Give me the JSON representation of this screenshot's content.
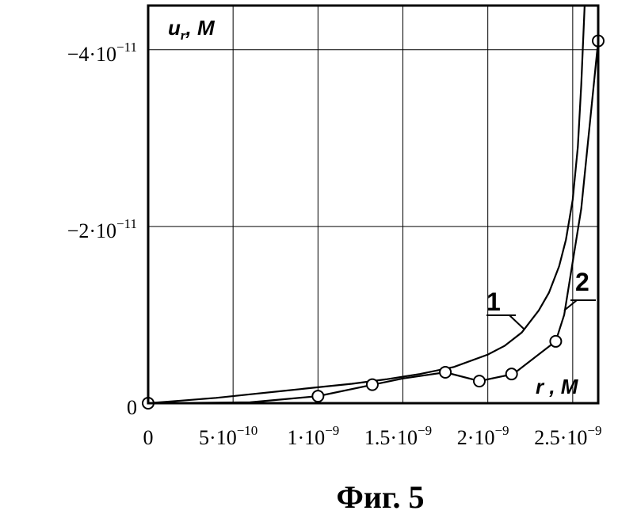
{
  "chart_data": {
    "type": "line",
    "ylabel": "u",
    "ylabel_sub": "r",
    "ylabel_unit": ", M",
    "xlabel": "r , M",
    "xlim": [
      0,
      2.65e-09
    ],
    "ylim": [
      0,
      -4.5e-11
    ],
    "grid": true,
    "x_ticks": [
      {
        "value": 0,
        "mantissa": "0",
        "exp": ""
      },
      {
        "value": 5e-10,
        "mantissa": "5·10",
        "exp": "−10"
      },
      {
        "value": 1e-09,
        "mantissa": "1·10",
        "exp": "−9"
      },
      {
        "value": 1.5e-09,
        "mantissa": "1.5·10",
        "exp": "−9"
      },
      {
        "value": 2e-09,
        "mantissa": "2·10",
        "exp": "−9"
      },
      {
        "value": 2.5e-09,
        "mantissa": "2.5·10",
        "exp": "−9"
      }
    ],
    "y_ticks": [
      {
        "value": 0,
        "mantissa": "0",
        "exp": ""
      },
      {
        "value": -2e-11,
        "mantissa": "−2·10",
        "exp": "−11"
      },
      {
        "value": -4e-11,
        "mantissa": "−4·10",
        "exp": "−11"
      }
    ],
    "series": [
      {
        "name": "1",
        "marker": "none",
        "x": [
          0,
          2e-10,
          4e-10,
          6e-10,
          8e-10,
          1e-09,
          1.2e-09,
          1.4e-09,
          1.6e-09,
          1.8e-09,
          2e-09,
          2.1e-09,
          2.2e-09,
          2.3e-09,
          2.36e-09,
          2.42e-09,
          2.46e-09,
          2.5e-09,
          2.53e-09,
          2.55e-09,
          2.57e-09
        ],
        "values": [
          0,
          -3e-13,
          -6e-13,
          -1e-12,
          -1.4e-12,
          -1.8e-12,
          -2.2e-12,
          -2.7e-12,
          -3.3e-12,
          -4.1e-12,
          -5.5e-12,
          -6.5e-12,
          -8e-12,
          -1.05e-11,
          -1.25e-11,
          -1.55e-11,
          -1.85e-11,
          -2.3e-11,
          -2.9e-11,
          -3.6e-11,
          -4.5e-11
        ]
      },
      {
        "name": "2",
        "marker": "circle",
        "x": [
          0,
          6e-10,
          1e-09,
          1.3e-09,
          1.5e-09,
          1.75e-09,
          1.95e-09,
          2.15e-09,
          2.4e-09,
          2.45e-09,
          2.55e-09,
          2.65e-09
        ],
        "values": [
          0,
          -1e-13,
          -8e-13,
          -2e-12,
          -2.8e-12,
          -3.5e-12,
          -2.5e-12,
          -3.3e-12,
          -7e-12,
          -1e-11,
          -2.2e-11,
          -4.1e-11
        ],
        "marker_x": [
          0,
          1e-09,
          1.32e-09,
          1.75e-09,
          1.95e-09,
          2.14e-09,
          2.4e-09,
          2.65e-09
        ],
        "marker_values": [
          0,
          -8e-13,
          -2.1e-12,
          -3.5e-12,
          -2.5e-12,
          -3.3e-12,
          -7e-12,
          -4.1e-11
        ]
      }
    ]
  },
  "caption": "Фиг. 5"
}
